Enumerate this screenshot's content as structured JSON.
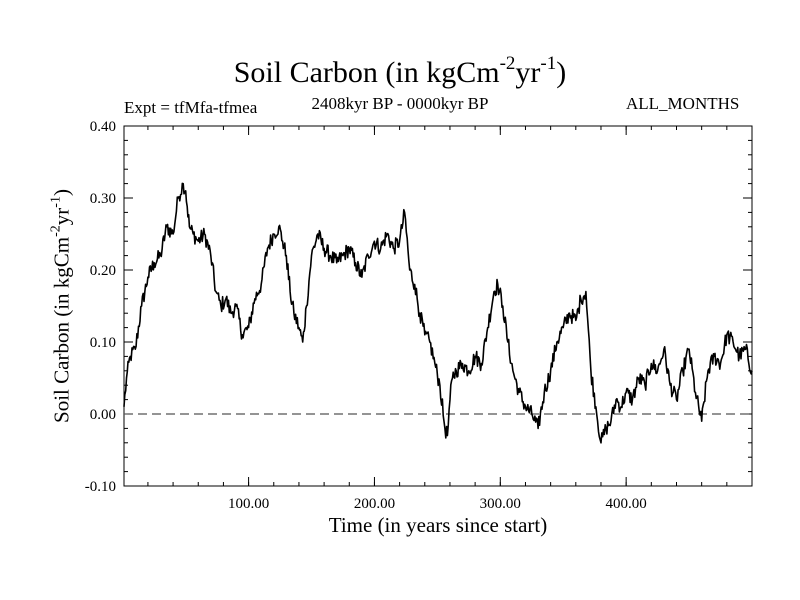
{
  "chart_data": {
    "type": "line",
    "title_main": "Soil Carbon (in kgCm",
    "title_exp1": "-2",
    "title_mid": "yr",
    "title_exp2": "-1",
    "title_end": ")",
    "expt_label": "Expt = tfMfa-tfmea",
    "period_label": "2408kyr BP - 0000kyr BP",
    "months_label": "ALL_MONTHS",
    "xlabel": "Time (in years since start)",
    "ylabel_main": "Soil Carbon (in kgCm",
    "ylabel_exp1": "-2",
    "ylabel_mid": "yr",
    "ylabel_exp2": "-1",
    "ylabel_end": ")",
    "xlim": [
      1,
      500
    ],
    "ylim": [
      -0.1,
      0.4
    ],
    "xticks": [
      100,
      200,
      300,
      400
    ],
    "xtick_labels": [
      "100.00",
      "200.00",
      "300.00",
      "400.00"
    ],
    "yticks": [
      -0.1,
      0.0,
      0.1,
      0.2,
      0.3,
      0.4
    ],
    "ytick_labels": [
      "-0.10",
      "0.00",
      "0.10",
      "0.20",
      "0.30",
      "0.40"
    ],
    "reference_line": 0.0,
    "series": [
      {
        "name": "Soil Carbon",
        "x": [
          1,
          3,
          6,
          10,
          15,
          20,
          25,
          30,
          35,
          40,
          44,
          48,
          50,
          53,
          56,
          60,
          65,
          70,
          74,
          78,
          82,
          86,
          90,
          95,
          100,
          105,
          110,
          115,
          120,
          124,
          127,
          130,
          133,
          136,
          140,
          143,
          146,
          150,
          155,
          160,
          165,
          170,
          175,
          180,
          185,
          190,
          195,
          200,
          205,
          210,
          215,
          220,
          224,
          228,
          232,
          236,
          240,
          244,
          248,
          252,
          256,
          258,
          260,
          262,
          265,
          270,
          275,
          280,
          285,
          290,
          295,
          298,
          302,
          306,
          310,
          315,
          320,
          325,
          330,
          335,
          340,
          345,
          350,
          355,
          360,
          364,
          368,
          372,
          376,
          380,
          384,
          388,
          392,
          396,
          400,
          405,
          410,
          415,
          420,
          425,
          430,
          435,
          440,
          445,
          450,
          455,
          460,
          465,
          470,
          475,
          480,
          485,
          490,
          495,
          500
        ],
        "values": [
          0.01,
          0.05,
          0.08,
          0.09,
          0.15,
          0.19,
          0.21,
          0.22,
          0.26,
          0.25,
          0.3,
          0.32,
          0.31,
          0.26,
          0.25,
          0.24,
          0.25,
          0.22,
          0.17,
          0.15,
          0.16,
          0.14,
          0.15,
          0.11,
          0.12,
          0.16,
          0.18,
          0.23,
          0.25,
          0.26,
          0.24,
          0.22,
          0.17,
          0.14,
          0.12,
          0.1,
          0.15,
          0.22,
          0.25,
          0.23,
          0.22,
          0.21,
          0.22,
          0.23,
          0.21,
          0.19,
          0.22,
          0.24,
          0.23,
          0.25,
          0.23,
          0.24,
          0.28,
          0.2,
          0.18,
          0.14,
          0.11,
          0.1,
          0.07,
          0.04,
          -0.02,
          -0.03,
          0.02,
          0.05,
          0.06,
          0.07,
          0.06,
          0.08,
          0.07,
          0.12,
          0.17,
          0.18,
          0.15,
          0.1,
          0.06,
          0.03,
          0.01,
          0.0,
          -0.02,
          0.03,
          0.06,
          0.1,
          0.12,
          0.14,
          0.13,
          0.16,
          0.17,
          0.06,
          0.01,
          -0.04,
          -0.02,
          -0.01,
          0.02,
          0.01,
          0.03,
          0.02,
          0.05,
          0.04,
          0.07,
          0.06,
          0.09,
          0.04,
          0.02,
          0.06,
          0.09,
          0.03,
          -0.01,
          0.06,
          0.08,
          0.07,
          0.11,
          0.1,
          0.08,
          0.09,
          0.06
        ]
      }
    ]
  }
}
